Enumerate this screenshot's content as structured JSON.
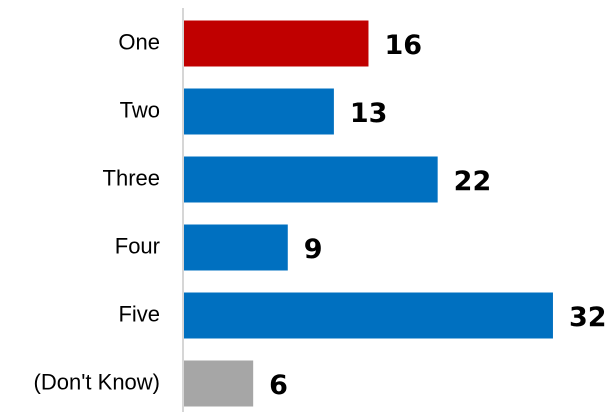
{
  "chart_data": {
    "type": "hbar",
    "categories": [
      "One",
      "Two",
      "Three",
      "Four",
      "Five",
      "(Don't Know)"
    ],
    "values": [
      16,
      13,
      22,
      9,
      32,
      6
    ],
    "colors": [
      "#c00000",
      "#0070c0",
      "#0070c0",
      "#0070c0",
      "#0070c0",
      "#a6a6a6"
    ]
  }
}
